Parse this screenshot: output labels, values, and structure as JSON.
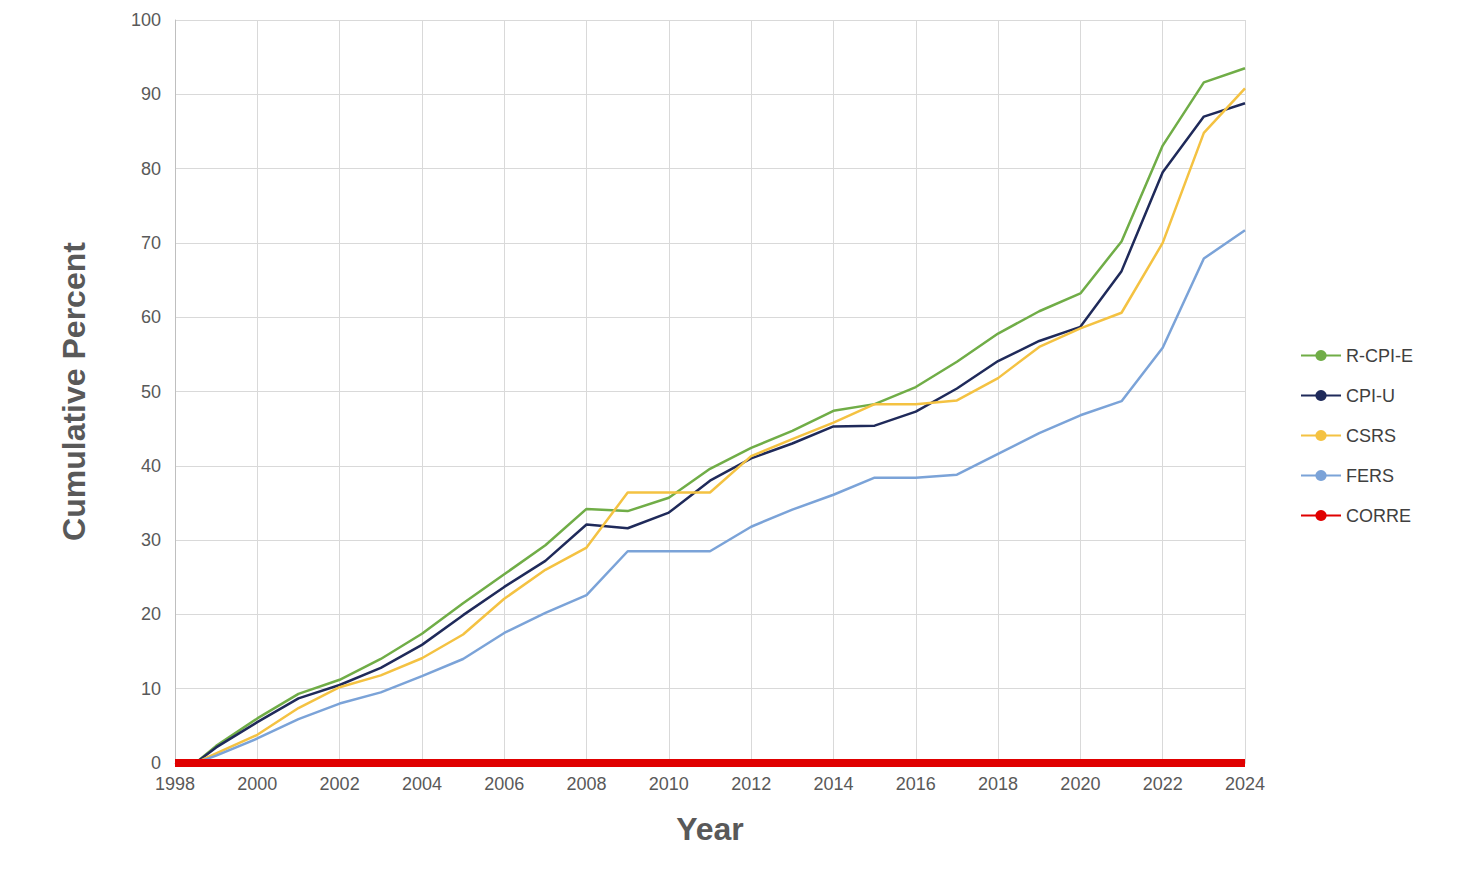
{
  "chart_data": {
    "type": "line",
    "x_label": "Year",
    "y_label": "Cumulative Percent",
    "x": [
      1998,
      1998.5,
      1999,
      2000,
      2001,
      2002,
      2003,
      2004,
      2005,
      2006,
      2007,
      2008,
      2009,
      2010,
      2011,
      2012,
      2013,
      2014,
      2015,
      2016,
      2017,
      2018,
      2019,
      2020,
      2021,
      2022,
      2023,
      2024
    ],
    "series": [
      {
        "name": "R-CPI-E",
        "color": "#70ad47",
        "values": [
          null,
          0,
          2.3,
          6,
          9.3,
          11.2,
          14,
          17.4,
          21.5,
          25.4,
          29.3,
          34.2,
          33.9,
          35.7,
          39.6,
          42.4,
          44.7,
          47.4,
          48.3,
          50.6,
          54,
          57.8,
          60.8,
          63.2,
          70.2,
          83.1,
          91.6,
          93.5
        ]
      },
      {
        "name": "CPI-U",
        "color": "#1f2a5a",
        "values": [
          null,
          0,
          2.1,
          5.5,
          8.7,
          10.5,
          12.8,
          15.9,
          19.9,
          23.7,
          27.2,
          32.1,
          31.6,
          33.7,
          38,
          41,
          43,
          45.3,
          45.4,
          47.3,
          50.4,
          54.1,
          56.8,
          58.7,
          66.2,
          79.5,
          87,
          88.8
        ]
      },
      {
        "name": "CSRS",
        "color": "#f4c242",
        "values": [
          null,
          0,
          1.3,
          3.8,
          7.4,
          10.2,
          11.8,
          14.1,
          17.3,
          22.1,
          26,
          29,
          36.4,
          36.4,
          36.4,
          41.3,
          43.6,
          45.8,
          48.3,
          48.3,
          48.8,
          51.8,
          56,
          58.5,
          60.6,
          70,
          84.8,
          90.8
        ]
      },
      {
        "name": "FERS",
        "color": "#7ba3d8",
        "values": [
          null,
          0,
          1,
          3.3,
          5.9,
          8,
          9.5,
          11.7,
          14,
          17.5,
          20.2,
          22.6,
          28.5,
          28.5,
          28.5,
          31.8,
          34.1,
          36.1,
          38.4,
          38.4,
          38.8,
          41.6,
          44.4,
          46.8,
          48.7,
          55.9,
          67.9,
          71.7
        ]
      },
      {
        "name": "CORRE",
        "color": "#e00000",
        "line_style": "thick",
        "values": [
          0,
          0,
          0,
          0,
          0,
          0,
          0,
          0,
          0,
          0,
          0,
          0,
          0,
          0,
          0,
          0,
          0,
          0,
          0,
          0,
          0,
          0,
          0,
          0,
          0,
          0,
          0,
          0
        ]
      }
    ],
    "xlim": [
      1998,
      2024
    ],
    "xticks": [
      1998,
      2000,
      2002,
      2004,
      2006,
      2008,
      2010,
      2012,
      2014,
      2016,
      2018,
      2020,
      2022,
      2024
    ],
    "ylim": [
      0,
      100
    ],
    "yticks": [
      0,
      10,
      20,
      30,
      40,
      50,
      60,
      70,
      80,
      90,
      100
    ],
    "grid": true,
    "legend": "right"
  }
}
